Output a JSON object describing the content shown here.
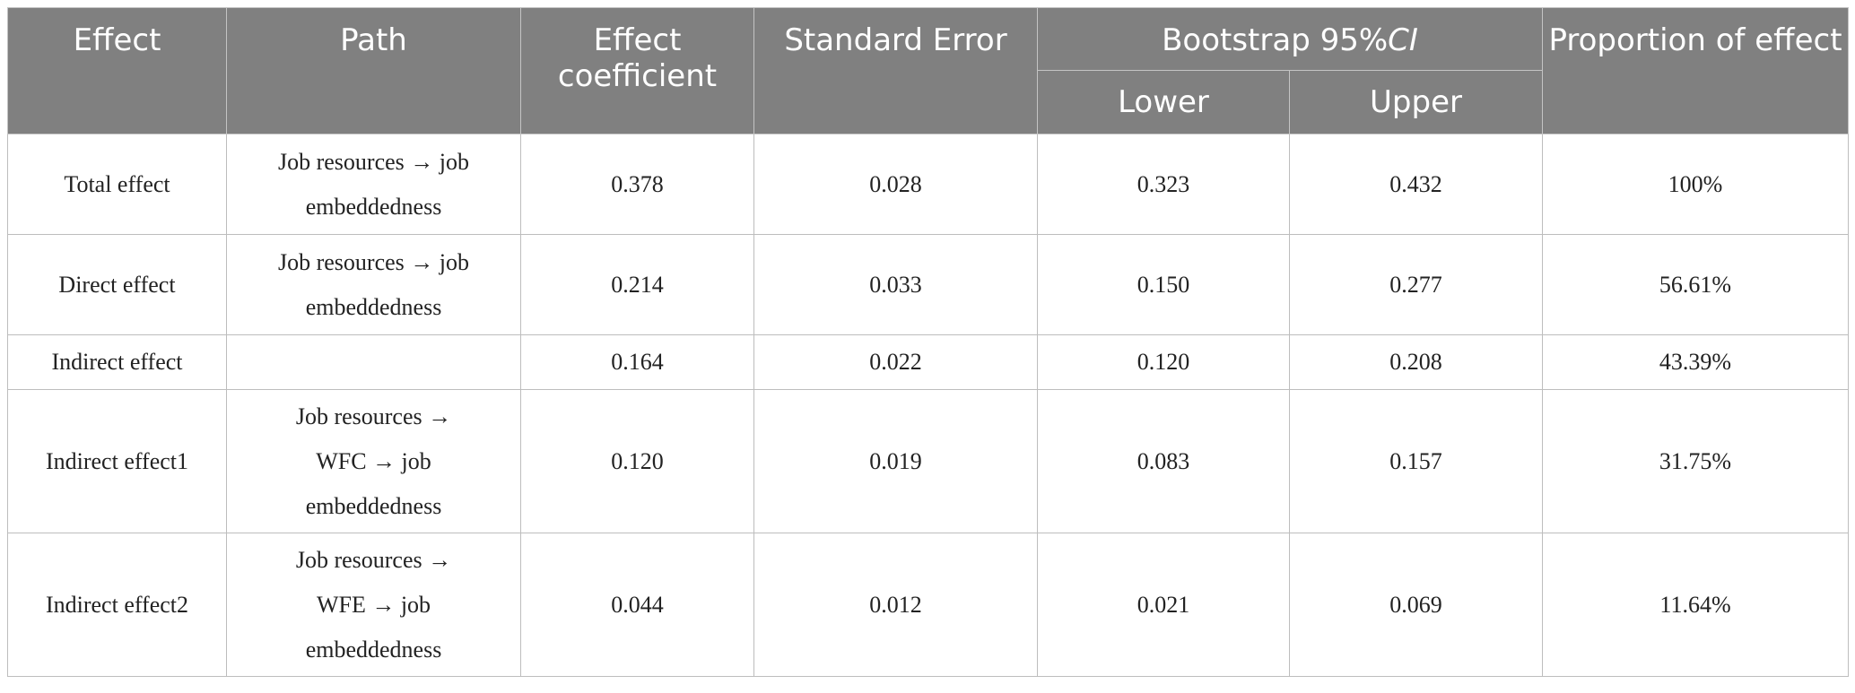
{
  "header": {
    "effect": "Effect",
    "path": "Path",
    "effect_coefficient": "Effect coefficient",
    "standard_error": "Standard Error",
    "bootstrap_prefix": "Bootstrap 95%",
    "bootstrap_ci": "CI",
    "lower": "Lower",
    "upper": "Upper",
    "proportion": "Proportion of effect"
  },
  "rows": [
    {
      "effect": "Total effect",
      "path": "Job resources → job embeddedness",
      "coef": "0.378",
      "se": "0.028",
      "lower": "0.323",
      "upper": "0.432",
      "proportion": "100%"
    },
    {
      "effect": "Direct effect",
      "path": "Job resources → job embeddedness",
      "coef": "0.214",
      "se": "0.033",
      "lower": "0.150",
      "upper": "0.277",
      "proportion": "56.61%"
    },
    {
      "effect": "Indirect effect",
      "path": "",
      "coef": "0.164",
      "se": "0.022",
      "lower": "0.120",
      "upper": "0.208",
      "proportion": "43.39%"
    },
    {
      "effect": "Indirect effect1",
      "path": "Job resources → WFC → job embeddedness",
      "coef": "0.120",
      "se": "0.019",
      "lower": "0.083",
      "upper": "0.157",
      "proportion": "31.75%"
    },
    {
      "effect": "Indirect effect2",
      "path": "Job resources → WFE → job embeddedness",
      "coef": "0.044",
      "se": "0.012",
      "lower": "0.021",
      "upper": "0.069",
      "proportion": "11.64%"
    }
  ]
}
